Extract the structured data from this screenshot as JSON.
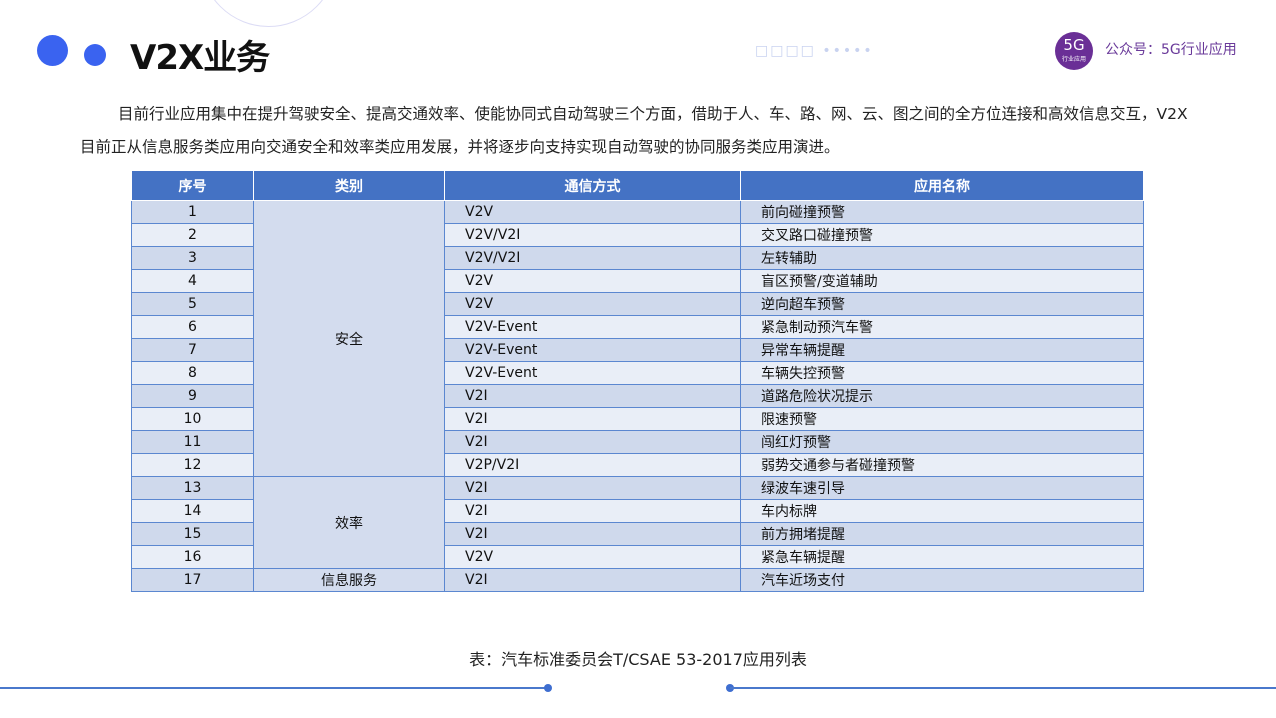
{
  "header": {
    "title": "V2X业务",
    "brand_logo_text": "5G",
    "brand_logo_subtext": "行业应用",
    "brand_label": "公众号：5G行业应用"
  },
  "intro": "目前行业应用集中在提升驾驶安全、提高交通效率、使能协同式自动驾驶三个方面，借助于人、车、路、网、云、图之间的全方位连接和高效信息交互，V2X目前正从信息服务类应用向交通安全和效率类应用发展，并将逐步向支持实现自动驾驶的协同服务类应用演进。",
  "table": {
    "headers": [
      "序号",
      "类别",
      "通信方式",
      "应用名称"
    ],
    "categories": [
      {
        "label": "安全",
        "span": 12
      },
      {
        "label": "效率",
        "span": 4
      },
      {
        "label": "信息服务",
        "span": 1
      }
    ],
    "rows": [
      {
        "no": "1",
        "comm": "V2V",
        "app": "前向碰撞预警"
      },
      {
        "no": "2",
        "comm": "V2V/V2I",
        "app": "交叉路口碰撞预警"
      },
      {
        "no": "3",
        "comm": "V2V/V2I",
        "app": "左转辅助"
      },
      {
        "no": "4",
        "comm": "V2V",
        "app": "盲区预警/变道辅助"
      },
      {
        "no": "5",
        "comm": "V2V",
        "app": "逆向超车预警"
      },
      {
        "no": "6",
        "comm": "V2V-Event",
        "app": "紧急制动预汽车警"
      },
      {
        "no": "7",
        "comm": "V2V-Event",
        "app": "异常车辆提醒"
      },
      {
        "no": "8",
        "comm": "V2V-Event",
        "app": "车辆失控预警"
      },
      {
        "no": "9",
        "comm": "V2I",
        "app": "道路危险状况提示"
      },
      {
        "no": "10",
        "comm": "V2I",
        "app": "限速预警"
      },
      {
        "no": "11",
        "comm": "V2I",
        "app": "闯红灯预警"
      },
      {
        "no": "12",
        "comm": "V2P/V2I",
        "app": "弱势交通参与者碰撞预警"
      },
      {
        "no": "13",
        "comm": "V2I",
        "app": "绿波车速引导"
      },
      {
        "no": "14",
        "comm": "V2I",
        "app": "车内标牌"
      },
      {
        "no": "15",
        "comm": "V2I",
        "app": "前方拥堵提醒"
      },
      {
        "no": "16",
        "comm": "V2V",
        "app": "紧急车辆提醒"
      },
      {
        "no": "17",
        "comm": "V2I",
        "app": "汽车近场支付"
      }
    ]
  },
  "caption": "表：汽车标准委员会T/CSAE 53-2017应用列表",
  "colors": {
    "accent": "#3a63f0",
    "table_header": "#4472c4",
    "brand": "#6a2f96"
  }
}
